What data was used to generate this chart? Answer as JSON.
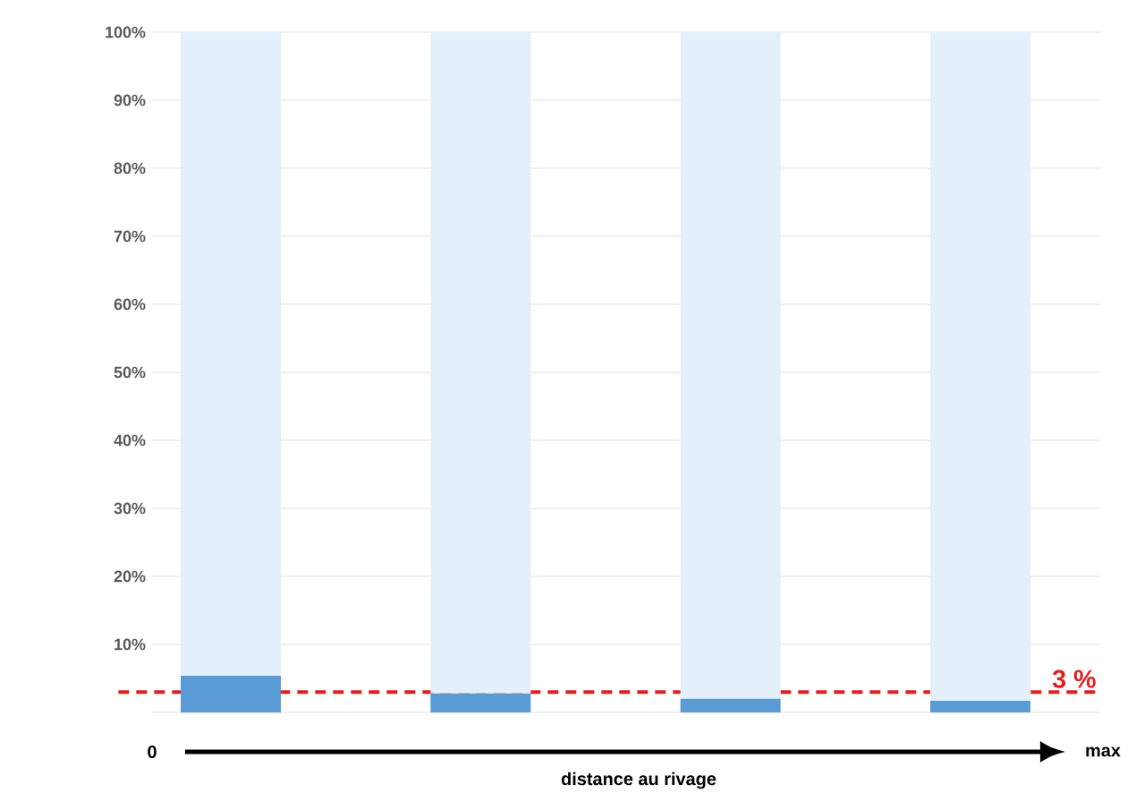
{
  "chart_data": {
    "type": "bar",
    "stacked": true,
    "categories": [
      null,
      null,
      null,
      null
    ],
    "series": [
      {
        "color": "#5b9bd5",
        "values": [
          5.4,
          2.8,
          2.0,
          1.7
        ]
      },
      {
        "color": "#e3f0fb",
        "values": [
          94.6,
          97.2,
          98.0,
          98.3
        ]
      }
    ],
    "ylim": [
      0,
      100
    ],
    "yticks": [
      {
        "value": 0,
        "label": null
      },
      {
        "value": 10,
        "label": "10%"
      },
      {
        "value": 20,
        "label": "20%"
      },
      {
        "value": 30,
        "label": "30%"
      },
      {
        "value": 40,
        "label": "40%"
      },
      {
        "value": 50,
        "label": "50%"
      },
      {
        "value": 60,
        "label": "60%"
      },
      {
        "value": 70,
        "label": "70%"
      },
      {
        "value": 80,
        "label": "80%"
      },
      {
        "value": 90,
        "label": "90%"
      },
      {
        "value": 100,
        "label": "100%"
      }
    ],
    "grid": "y",
    "ref_lines": [
      {
        "axis": "y",
        "value": 3,
        "label": "3 %",
        "color": "#e02020",
        "line_style": "dashed"
      }
    ],
    "annotations": [
      "0",
      "max",
      "distance au rivage"
    ]
  }
}
